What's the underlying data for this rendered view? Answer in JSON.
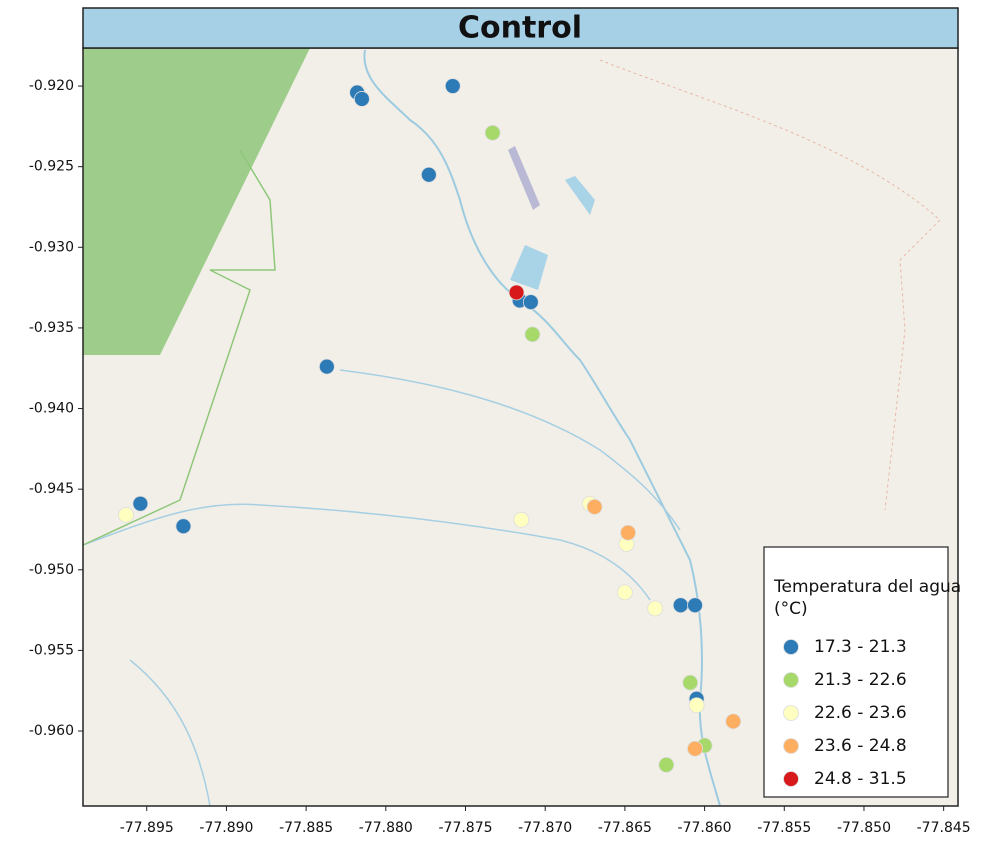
{
  "chart_data": {
    "type": "scatter",
    "title": "Control",
    "legend_title": "Temperatura del agua (°C)",
    "legend": "lower right",
    "xlim": [
      -77.899,
      -77.8441
    ],
    "ylim": [
      -0.96465,
      -0.91764
    ],
    "xticks": [
      -77.895,
      {
        "value": -77.89,
        "label": "-77.890"
      },
      -77.885,
      {
        "value": -77.88,
        "label": "-77.880"
      },
      -77.875,
      {
        "value": -77.87,
        "label": "-77.870"
      },
      -77.865,
      {
        "value": -77.86,
        "label": "-77.860"
      },
      -77.855,
      {
        "value": -77.85,
        "label": "-77.850"
      },
      -77.845
    ],
    "yticks": [
      {
        "value": -0.92,
        "label": "-0.920"
      },
      -0.925,
      {
        "value": -0.93,
        "label": "-0.930"
      },
      -0.935,
      {
        "value": -0.94,
        "label": "-0.940"
      },
      -0.945,
      {
        "value": -0.95,
        "label": "-0.950"
      },
      -0.955,
      {
        "value": -0.96,
        "label": "-0.960"
      }
    ],
    "series": [
      {
        "name": "17.3 - 21.3",
        "color": "#2c7bb6",
        "x": [
          -77.8818,
          -77.8815,
          -77.8758,
          -77.8773,
          -77.8837,
          -77.8954,
          -77.8927,
          -77.8716,
          -77.8709,
          -77.8615,
          -77.8606,
          -77.8605
        ],
        "values": [
          -0.9204,
          -0.9208,
          -0.92,
          -0.9255,
          -0.9374,
          -0.9459,
          -0.9473,
          -0.9333,
          -0.9334,
          -0.9522,
          -0.9522,
          -0.958
        ]
      },
      {
        "name": "21.3 - 22.6",
        "color": "#a6d96a",
        "x": [
          -77.8733,
          -77.8708,
          -77.8609,
          -77.86,
          -77.8624
        ],
        "values": [
          -0.9229,
          -0.9354,
          -0.957,
          -0.9609,
          -0.9621
        ]
      },
      {
        "name": "22.6 - 23.6",
        "color": "#ffffbf",
        "x": [
          -77.8963,
          -77.8715,
          -77.8672,
          -77.8649,
          -77.865,
          -77.8631,
          -77.8605
        ],
        "values": [
          -0.9466,
          -0.9469,
          -0.9459,
          -0.9484,
          -0.9514,
          -0.9524,
          -0.9584
        ]
      },
      {
        "name": "23.6 - 24.8",
        "color": "#fdae61",
        "x": [
          -77.8669,
          -77.8648,
          -77.8582,
          -77.8606
        ],
        "values": [
          -0.9461,
          -0.9477,
          -0.9594,
          -0.9611
        ]
      },
      {
        "name": "24.8 - 31.5",
        "color": "#d7191c",
        "x": [
          -77.8718
        ],
        "values": [
          -0.9328
        ]
      }
    ]
  }
}
